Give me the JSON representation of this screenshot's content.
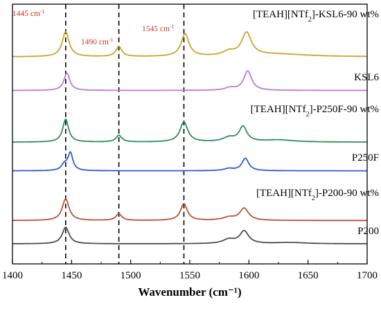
{
  "chart_data": {
    "type": "line",
    "title": "",
    "xlabel": "Wavenumber (cm⁻¹)",
    "ylabel": "",
    "xlim": [
      1400,
      1700
    ],
    "xticks": [
      1400,
      1450,
      1500,
      1550,
      1600,
      1650,
      1700
    ],
    "grid": false,
    "legend": "none (series labeled directly above each trace)",
    "reference_lines": [
      1445,
      1490,
      1545
    ],
    "annotations": [
      {
        "text": "1445 cm⁻¹",
        "x": 1445
      },
      {
        "text": "1490 cm⁻¹",
        "x": 1490
      },
      {
        "text": "1545 cm⁻¹",
        "x": 1545
      }
    ],
    "series": [
      {
        "name": "[TEAH][NTf₂]-KSL6-90 wt%",
        "color": "#c8a52a",
        "baseline": 0.1,
        "peaks": [
          {
            "x": 1445,
            "h": 0.6,
            "w": 3.5
          },
          {
            "x": 1490,
            "h": 0.24,
            "w": 3
          },
          {
            "x": 1546,
            "h": 0.54,
            "w": 4
          },
          {
            "x": 1583,
            "h": 0.1,
            "w": 6
          },
          {
            "x": 1598,
            "h": 0.55,
            "w": 5
          },
          {
            "x": 1625,
            "h": 0.06,
            "w": 30
          }
        ]
      },
      {
        "name": "KSL6",
        "color": "#b57be0",
        "baseline": 0.04,
        "peaks": [
          {
            "x": 1446,
            "h": 0.42,
            "w": 3
          },
          {
            "x": 1584,
            "h": 0.06,
            "w": 5
          },
          {
            "x": 1599,
            "h": 0.47,
            "w": 4
          }
        ]
      },
      {
        "name": "[TEAH][NTf₂]-P250F-90 wt%",
        "color": "#2e8b5e",
        "baseline": 0.08,
        "peaks": [
          {
            "x": 1445,
            "h": 0.55,
            "w": 3
          },
          {
            "x": 1490,
            "h": 0.16,
            "w": 3
          },
          {
            "x": 1545,
            "h": 0.48,
            "w": 4
          },
          {
            "x": 1583,
            "h": 0.1,
            "w": 6
          },
          {
            "x": 1595,
            "h": 0.36,
            "w": 4
          },
          {
            "x": 1625,
            "h": 0.05,
            "w": 15
          }
        ]
      },
      {
        "name": "P250F",
        "color": "#2e5bd6",
        "baseline": 0.04,
        "peaks": [
          {
            "x": 1444,
            "h": 0.14,
            "w": 3
          },
          {
            "x": 1449,
            "h": 0.42,
            "w": 2.5
          },
          {
            "x": 1583,
            "h": 0.05,
            "w": 5
          },
          {
            "x": 1597,
            "h": 0.3,
            "w": 3.5
          }
        ]
      },
      {
        "name": "[TEAH][NTf₂]-P200-90 wt%",
        "color": "#b3533b",
        "baseline": 0.06,
        "peaks": [
          {
            "x": 1445,
            "h": 0.52,
            "w": 3.5
          },
          {
            "x": 1490,
            "h": 0.16,
            "w": 3
          },
          {
            "x": 1545,
            "h": 0.4,
            "w": 3.5
          },
          {
            "x": 1583,
            "h": 0.07,
            "w": 6
          },
          {
            "x": 1596,
            "h": 0.29,
            "w": 4.5
          }
        ]
      },
      {
        "name": "P200",
        "color": "#4d4d4d",
        "baseline": 0.05,
        "peaks": [
          {
            "x": 1445,
            "h": 0.4,
            "w": 3.5
          },
          {
            "x": 1583,
            "h": 0.1,
            "w": 6
          },
          {
            "x": 1596,
            "h": 0.3,
            "w": 4.5
          },
          {
            "x": 1635,
            "h": 0.03,
            "w": 15
          }
        ]
      }
    ]
  }
}
